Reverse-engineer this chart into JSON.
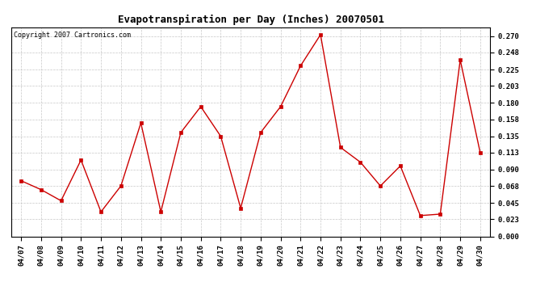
{
  "title": "Evapotranspiration per Day (Inches) 20070501",
  "copyright_text": "Copyright 2007 Cartronics.com",
  "dates": [
    "04/07",
    "04/08",
    "04/09",
    "04/10",
    "04/11",
    "04/12",
    "04/13",
    "04/14",
    "04/15",
    "04/16",
    "04/17",
    "04/18",
    "04/19",
    "04/20",
    "04/21",
    "04/22",
    "04/23",
    "04/24",
    "04/25",
    "04/26",
    "04/27",
    "04/28",
    "04/29",
    "04/30"
  ],
  "values": [
    0.075,
    0.063,
    0.048,
    0.103,
    0.033,
    0.068,
    0.153,
    0.033,
    0.14,
    0.175,
    0.135,
    0.038,
    0.14,
    0.175,
    0.23,
    0.272,
    0.12,
    0.1,
    0.068,
    0.095,
    0.028,
    0.03,
    0.238,
    0.113
  ],
  "line_color": "#cc0000",
  "marker_color": "#cc0000",
  "bg_color": "#ffffff",
  "grid_color": "#c8c8c8",
  "ylim": [
    0.0,
    0.282
  ],
  "yticks": [
    0.0,
    0.023,
    0.045,
    0.068,
    0.09,
    0.113,
    0.135,
    0.158,
    0.18,
    0.203,
    0.225,
    0.248,
    0.27
  ],
  "title_fontsize": 9,
  "tick_fontsize": 6.5,
  "copyright_fontsize": 6
}
